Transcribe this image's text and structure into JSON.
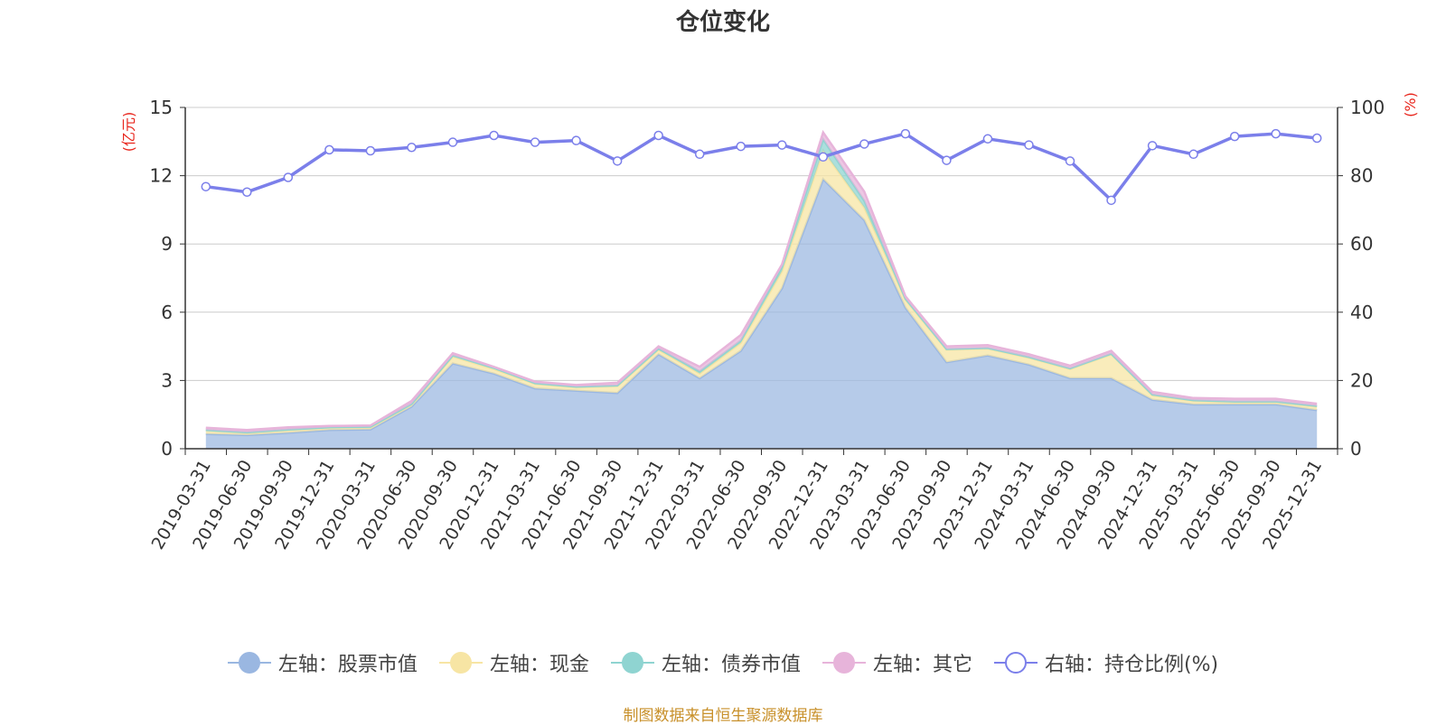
{
  "chart_data": {
    "type": "area",
    "title": "仓位变化",
    "left_axis_unit": "(亿元)",
    "right_axis_unit": "(%)",
    "left_ylim": [
      0,
      15
    ],
    "left_ticks": [
      0,
      3,
      6,
      9,
      12,
      15
    ],
    "right_ylim": [
      0,
      100
    ],
    "right_ticks": [
      0,
      20,
      40,
      60,
      80,
      100
    ],
    "grid": true,
    "legend_position": "bottom",
    "categories": [
      "2019-03-31",
      "2019-06-30",
      "2019-09-30",
      "2019-12-31",
      "2020-03-31",
      "2020-06-30",
      "2020-09-30",
      "2020-12-31",
      "2021-03-31",
      "2021-06-30",
      "2021-09-30",
      "2021-12-31",
      "2022-03-31",
      "2022-06-30",
      "2022-09-30",
      "2022-12-31",
      "2023-03-31",
      "2023-06-30",
      "2023-09-30",
      "2023-12-31",
      "2024-03-31",
      "2024-06-30",
      "2024-09-30",
      "2024-12-31",
      "2025-03-31",
      "2025-06-30",
      "2025-09-30",
      "2025-12-31"
    ],
    "series": [
      {
        "name": "左轴：股票市值",
        "axis": "left",
        "kind": "stacked-area",
        "color": "#9ab7e1",
        "values": [
          0.65,
          0.6,
          0.7,
          0.82,
          0.85,
          1.85,
          3.75,
          3.3,
          2.65,
          2.55,
          2.45,
          4.15,
          3.1,
          4.3,
          7.05,
          11.85,
          10.05,
          6.2,
          3.8,
          4.1,
          3.7,
          3.1,
          3.1,
          2.15,
          1.95,
          1.95,
          1.95,
          1.7
        ]
      },
      {
        "name": "左轴：现金",
        "axis": "left",
        "kind": "stacked-area",
        "color": "#f7e5a4",
        "values": [
          0.15,
          0.1,
          0.12,
          0.1,
          0.1,
          0.1,
          0.3,
          0.2,
          0.2,
          0.15,
          0.3,
          0.2,
          0.2,
          0.35,
          0.75,
          1.25,
          0.55,
          0.35,
          0.55,
          0.3,
          0.3,
          0.4,
          1.05,
          0.2,
          0.15,
          0.1,
          0.1,
          0.15
        ]
      },
      {
        "name": "左轴：债券市值",
        "axis": "left",
        "kind": "stacked-area",
        "color": "#8fd4d1",
        "values": [
          0.02,
          0.02,
          0.02,
          0.02,
          0.02,
          0.02,
          0.05,
          0.05,
          0.03,
          0.03,
          0.03,
          0.05,
          0.1,
          0.1,
          0.2,
          0.5,
          0.3,
          0.05,
          0.03,
          0.03,
          0.03,
          0.03,
          0.03,
          0.03,
          0.03,
          0.03,
          0.03,
          0.03
        ]
      },
      {
        "name": "左轴：其它",
        "axis": "left",
        "kind": "stacked-area",
        "color": "#e7b4da",
        "values": [
          0.1,
          0.1,
          0.1,
          0.06,
          0.05,
          0.13,
          0.1,
          0.05,
          0.07,
          0.07,
          0.12,
          0.1,
          0.2,
          0.25,
          0.1,
          0.3,
          0.4,
          0.1,
          0.12,
          0.12,
          0.12,
          0.12,
          0.12,
          0.12,
          0.1,
          0.12,
          0.12,
          0.1
        ]
      },
      {
        "name": "右轴：持仓比例(%)",
        "axis": "right",
        "kind": "line",
        "color": "#7b7fea",
        "values": [
          76.8,
          75.2,
          79.5,
          87.6,
          87.3,
          88.3,
          89.8,
          91.8,
          89.8,
          90.3,
          84.3,
          91.8,
          86.3,
          88.6,
          89.0,
          85.5,
          89.3,
          92.3,
          84.5,
          90.8,
          89.0,
          84.3,
          72.8,
          88.8,
          86.3,
          91.5,
          92.3,
          91.0
        ]
      }
    ]
  },
  "source_note": "制图数据来自恒生聚源数据库"
}
